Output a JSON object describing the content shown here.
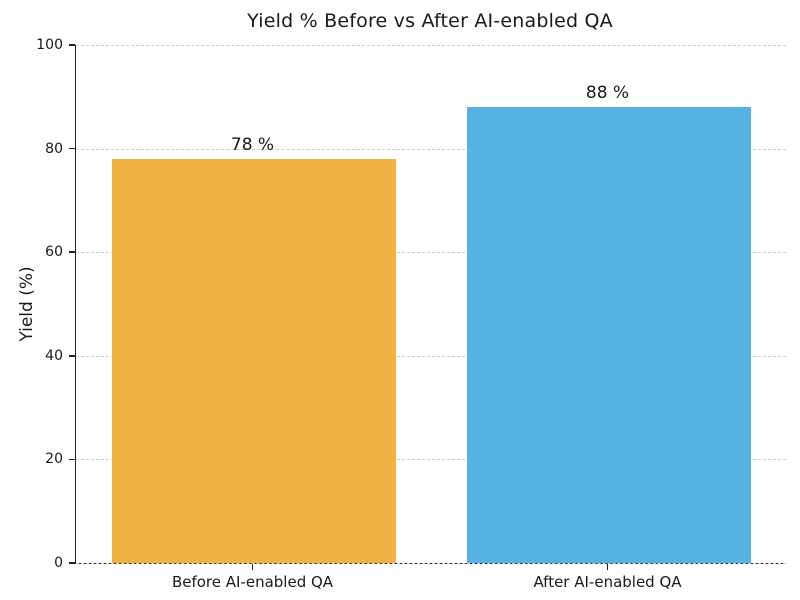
{
  "chart_data": {
    "type": "bar",
    "title": "Yield % Before vs After AI-enabled QA",
    "xlabel": "",
    "ylabel": "Yield (%)",
    "categories": [
      "Before AI-enabled QA",
      "After AI-enabled QA"
    ],
    "values": [
      78,
      88
    ],
    "value_labels": [
      "78 %",
      "88 %"
    ],
    "bar_colors": [
      "#F1B143",
      "#55B2E2"
    ],
    "ylim": [
      0,
      100
    ],
    "yticks": [
      0,
      20,
      40,
      60,
      80,
      100
    ],
    "grid": "horizontal dashed gridlines",
    "legend_position": "none",
    "bar_width_fraction": 0.8
  }
}
